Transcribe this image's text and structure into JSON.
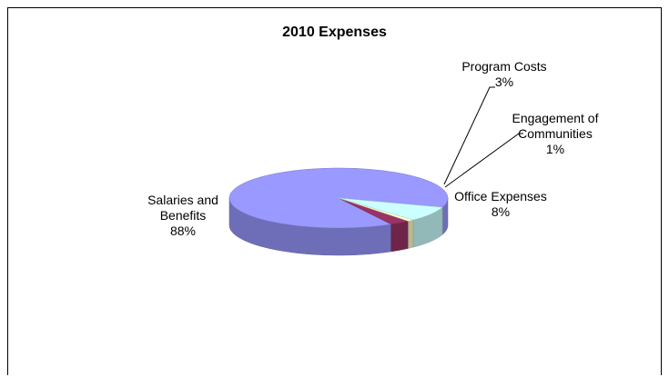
{
  "chart_data": {
    "type": "pie",
    "style": "3d",
    "title": "2010 Expenses",
    "slices": [
      {
        "label": "Salaries and Benefits",
        "pct_label": "88%",
        "value": 88,
        "color": "#9999ff"
      },
      {
        "label": "Program Costs",
        "pct_label": "3%",
        "value": 3,
        "color": "#993366"
      },
      {
        "label": "Engagement of Communities",
        "label_lines": [
          "Engagement of",
          "Communities"
        ],
        "pct_label": "1%",
        "value": 1,
        "color": "#ffffcc"
      },
      {
        "label": "Office Expenses",
        "pct_label": "8%",
        "value": 8,
        "color": "#ccffff"
      }
    ]
  }
}
